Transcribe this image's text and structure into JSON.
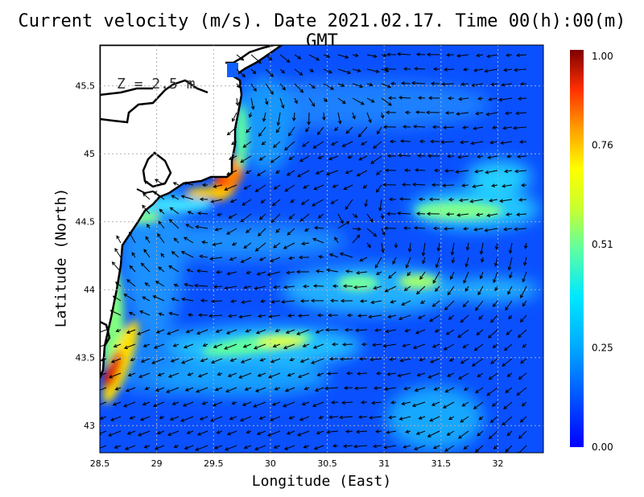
{
  "title": "Current velocity (m/s). Date 2021.02.17. Time 00(h):00(m) GMT",
  "depth_label": "Z = 2.5 m",
  "colorbar": {
    "ticks": [
      "1.00",
      "0.76",
      "0.51",
      "0.25",
      "0.00"
    ],
    "colors": [
      "#0000ff",
      "#0050ff",
      "#00a0ff",
      "#00e0ff",
      "#60ffa0",
      "#c0ff40",
      "#ffff00",
      "#ffa000",
      "#ff4000",
      "#e00000",
      "#800000"
    ]
  },
  "land_color": "#ffffff",
  "coast_color": "#000000",
  "chart_data": {
    "type": "heatmap",
    "xlabel": "Longitude (East)",
    "ylabel": "Latitude (North)",
    "xlim": [
      28.5,
      32.4
    ],
    "ylim": [
      42.8,
      45.8
    ],
    "xticks": [
      "28.5",
      "29",
      "29.5",
      "30",
      "30.5",
      "31",
      "31.5",
      "32"
    ],
    "yticks": [
      "43",
      "43.5",
      "44",
      "44.5",
      "45",
      "45.5"
    ],
    "value_range": [
      0.0,
      1.0
    ],
    "grid": true,
    "jets": [
      {
        "lon": 28.62,
        "lat": 43.45,
        "speed": 0.95
      },
      {
        "lon": 29.62,
        "lat": 44.75,
        "speed": 0.8
      },
      {
        "lon": 29.9,
        "lat": 43.6,
        "speed": 0.6
      },
      {
        "lon": 31.7,
        "lat": 44.6,
        "speed": 0.55
      },
      {
        "lon": 31.3,
        "lat": 44.05,
        "speed": 0.5
      },
      {
        "lon": 30.6,
        "lat": 44.05,
        "speed": 0.45
      },
      {
        "lon": 28.7,
        "lat": 44.0,
        "speed": 0.6
      }
    ]
  }
}
